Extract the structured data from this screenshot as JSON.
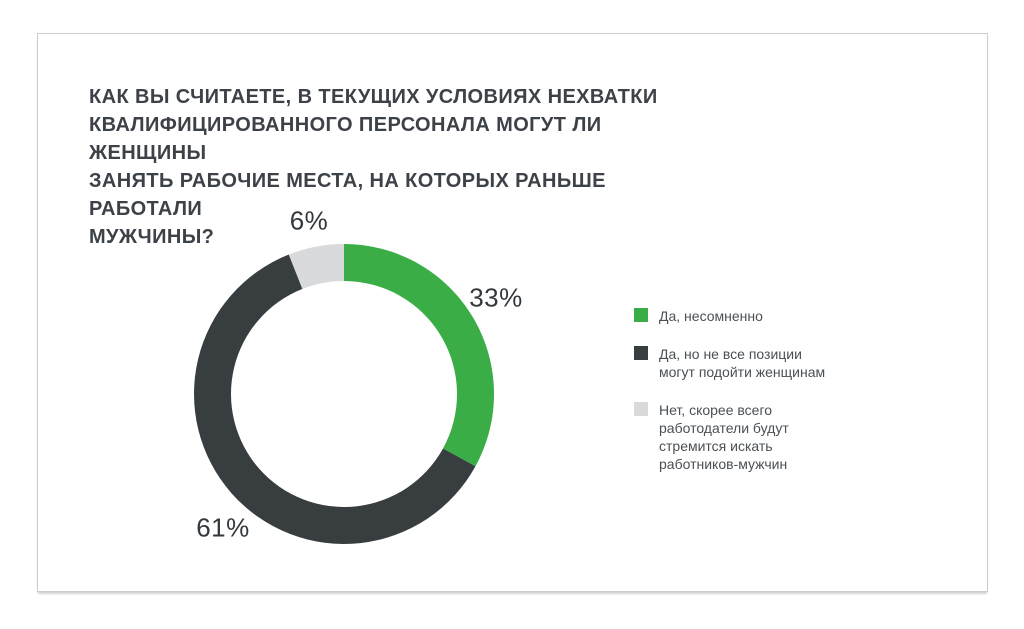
{
  "chart_data": {
    "type": "pie",
    "donut": true,
    "inner_radius_ratio": 0.75,
    "start_angle_deg": 0,
    "direction": "clockwise",
    "legend_position": "right",
    "title": "КАК ВЫ СЧИТАЕТЕ, В ТЕКУЩИХ УСЛОВИЯХ НЕХВАТКИ\nКВАЛИФИЦИРОВАННОГО ПЕРСОНАЛА МОГУТ ЛИ ЖЕНЩИНЫ\nЗАНЯТЬ РАБОЧИЕ МЕСТА, НА КОТОРЫХ РАНЬШЕ РАБОТАЛИ\nМУЖЧИНЫ?",
    "slices": [
      {
        "label": "Да, несомненно",
        "value": 33,
        "pct_label": "33%",
        "color": "#3aad46"
      },
      {
        "label": "Да, но не все позиции\nмогут подойти женщинам",
        "value": 61,
        "pct_label": "61%",
        "color": "#383d40"
      },
      {
        "label": "Нет, скорее всего\nработодатели будут\nстремится искать\nработников-мужчин",
        "value": 6,
        "pct_label": "6%",
        "color": "#d9dadb"
      }
    ]
  },
  "colors": {
    "title_text": "#3d4249",
    "legend_text": "#4b5055",
    "pct_text": "#33383d",
    "card_border": "#cccccc",
    "background": "#ffffff"
  }
}
